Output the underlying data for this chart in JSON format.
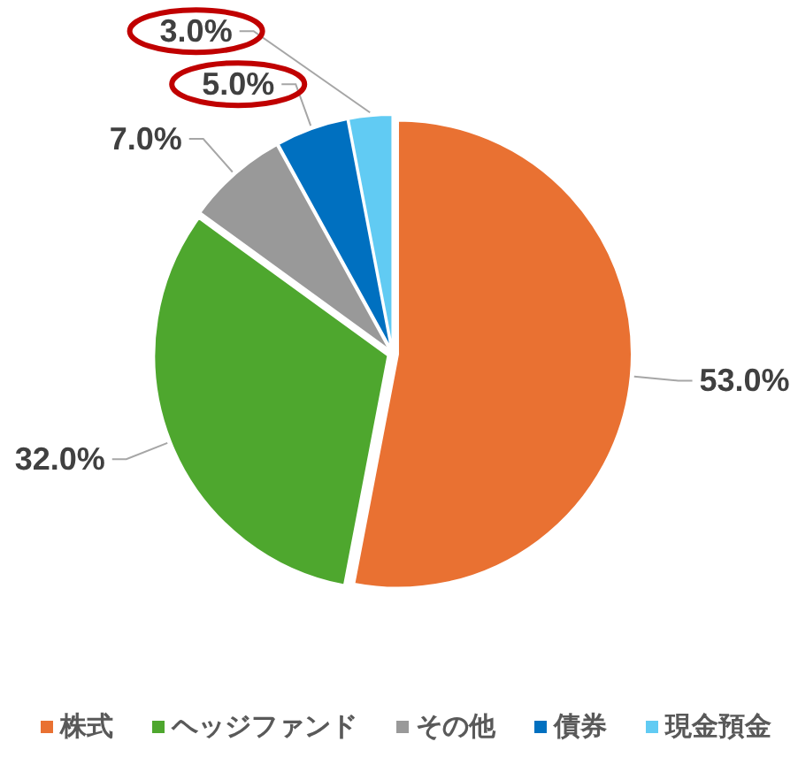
{
  "chart_data": {
    "type": "pie",
    "categories": [
      "株式",
      "ヘッジファンド",
      "その他",
      "債券",
      "現金預金"
    ],
    "values": [
      53.0,
      32.0,
      7.0,
      5.0,
      3.0
    ],
    "colors": [
      "#e97132",
      "#4ea72e",
      "#999999",
      "#0070c0",
      "#61cbf3"
    ],
    "value_labels": [
      "53.0%",
      "32.0%",
      "7.0%",
      "5.0%",
      "3.0%"
    ],
    "legend": "bottom"
  }
}
